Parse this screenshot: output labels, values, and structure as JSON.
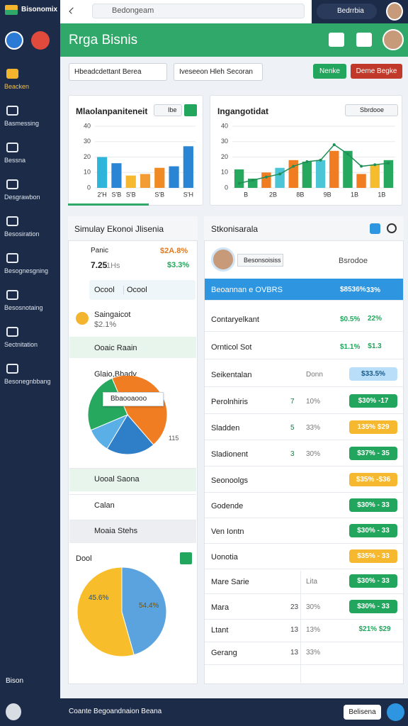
{
  "sidebar": {
    "brand": "Bisonomix",
    "items": [
      "Beacken",
      "Basmessing",
      "Bessna",
      "Desgrawbon",
      "Besosiration",
      "Besognesgning",
      "Besosnotaing",
      "Sectnitation",
      "Besonegnbbang"
    ],
    "user": "Bison"
  },
  "topbar": {
    "search": "Bedongeam",
    "account": "Bedrrbia"
  },
  "header": {
    "title": "Rrga Bisnis"
  },
  "toolbar": {
    "tabs": [
      "Hbeadcdettant Berea",
      "Iveseeon Hleh Secoran"
    ],
    "buttons": [
      "Nenke",
      "Deme Begke"
    ]
  },
  "bar_chart": {
    "title": "Mlaolanpaniteneit",
    "control": "Ibe",
    "categories": [
      "2'H",
      "S'B",
      "S'B",
      null,
      "S'B",
      null,
      "S'H"
    ],
    "values": [
      20,
      16,
      8,
      9,
      13,
      14,
      27
    ],
    "colors": [
      "#2fb5d9",
      "#2a86d4",
      "#f5b82e",
      "#f39c34",
      "#f08a24",
      "#2a86d4",
      "#2a86d4"
    ],
    "ylim": [
      0,
      40
    ],
    "yticks": [
      0,
      10,
      20,
      30,
      40
    ]
  },
  "combo_chart": {
    "title": "Ingangotidat",
    "control": "Sbrdooe",
    "categories": [
      "B",
      null,
      "2B",
      null,
      "8B",
      null,
      "9B",
      null,
      "1B",
      null,
      "1B",
      null
    ],
    "values": [
      12,
      6,
      10,
      13,
      18,
      17,
      18,
      24,
      24,
      9,
      15,
      18
    ],
    "colors": [
      "#27a85f",
      "#27a85f",
      "#f07d22",
      "#4cc6d6",
      "#f07d22",
      "#27a85f",
      "#4cc6d6",
      "#f07d22",
      "#27a85f",
      "#f07d22",
      "#f5bd2e",
      "#27a85f"
    ],
    "line": [
      3,
      5,
      7,
      9,
      14,
      17,
      18,
      28,
      22,
      14,
      15,
      16
    ],
    "line_color": "#1f8f56",
    "ylim": [
      0,
      40
    ],
    "yticks": [
      0,
      10,
      20,
      30,
      40
    ]
  },
  "simulator": {
    "title": "Simulay Ekonoi Jlisenia",
    "label": "Panic",
    "top_value": "$2A.8%",
    "count": "7.25",
    "unit": "1Hs",
    "change": "$3.3%",
    "rows": [
      "Ocool",
      "Ocool"
    ],
    "item": "Saingaicot",
    "item_value": "$2.1%",
    "action": "Ooaic Raain",
    "pie_title": "Glaio,Bbady",
    "pie_tooltip": "Bbaooaooo",
    "pie_note": "115",
    "pie_values": [
      25,
      45,
      20,
      10
    ],
    "pie_colors": [
      "#27a85f",
      "#f07d22",
      "#2f7fc8",
      "#5ab0e6"
    ],
    "links": [
      "Uooal Saona",
      "Calan",
      "Moaia Stehs"
    ],
    "pie2_title": "Dool",
    "pie2_values": [
      45.6,
      54.4
    ],
    "pie2_labels": [
      "45.6%",
      "54.4%"
    ],
    "pie2_colors": [
      "#5aa3de",
      "#f7bd2a"
    ]
  },
  "table": {
    "title": "Stkonisarala",
    "profile": "Besonsoisiss",
    "profile_action": "Bsrodoe",
    "rows": [
      [
        "Beoannan e OVBRS",
        null,
        "$8536%",
        "33%",
        "#2e95e0"
      ],
      [
        "Contaryelkant",
        null,
        "$0.5%",
        "22%",
        null
      ],
      [
        "Ornticol Sot",
        null,
        "$1.1%",
        "$1.3",
        null
      ],
      [
        "Seikentalan",
        null,
        "Donn",
        "$33.5%",
        "#b9defa"
      ],
      [
        "Perolnhiris",
        "7",
        "10%",
        "$30% -17",
        "#22a55c"
      ],
      [
        "Sladden",
        "5",
        "33%",
        "135% $29",
        "#f5b82e"
      ],
      [
        "Sladionent",
        "3",
        "30%",
        "$37% - 35",
        "#22a55c"
      ],
      [
        "Seonoolgs",
        null,
        null,
        "$35% -$36",
        "#f5b82e"
      ],
      [
        "Godende",
        null,
        null,
        "$30% - 33",
        "#22a55c"
      ],
      [
        "Ven Iontn",
        null,
        null,
        "$30% - 33",
        "#22a55c"
      ],
      [
        "Uonotia",
        null,
        null,
        "$35% - 33",
        "#f5b82e"
      ],
      [
        "Mare Sarie",
        null,
        "Lita",
        "$30% - 33",
        "#22a55c"
      ],
      [
        "Mara",
        "23",
        "30%",
        "$30% - 33",
        "#22a55c"
      ],
      [
        "Ltant",
        "13",
        "13%",
        "$21%  $29",
        null
      ],
      [
        "Gerang",
        "13",
        "33%",
        null,
        null
      ]
    ]
  },
  "footer": {
    "input": "Coante Begoandnaion Beana",
    "button": "Belisena"
  }
}
